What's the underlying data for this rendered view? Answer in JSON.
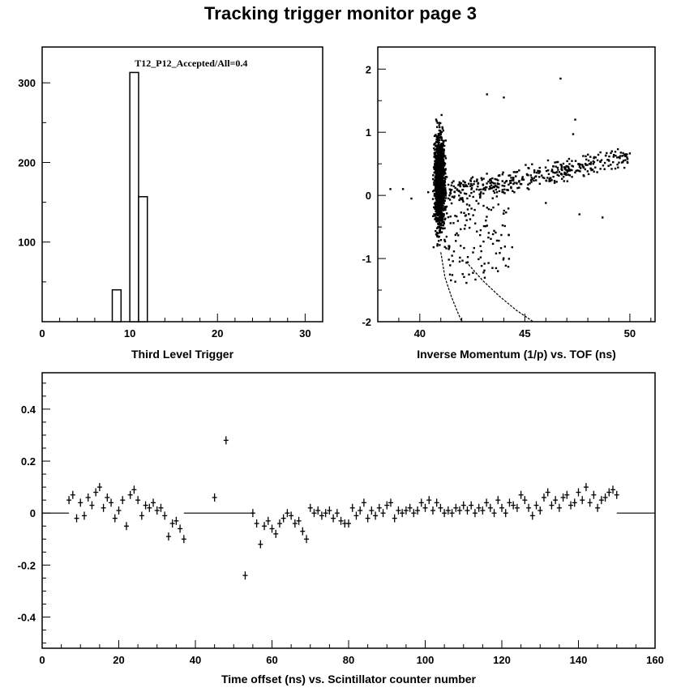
{
  "page": {
    "title": "Tracking trigger monitor page 3"
  },
  "chart_data": [
    {
      "id": "hist",
      "type": "bar",
      "title": "",
      "stat_label": "T12_P12_Accepted/All=0.4",
      "xlabel": "Third Level Trigger",
      "ylabel": "",
      "xlim": [
        0,
        32
      ],
      "ylim": [
        0,
        345
      ],
      "xticks": [
        0,
        10,
        20,
        30
      ],
      "yticks": [
        100,
        200,
        300
      ],
      "bin_width": 1,
      "bins": [
        {
          "x": 8,
          "value": 40
        },
        {
          "x": 9,
          "value": 0
        },
        {
          "x": 10,
          "value": 313
        },
        {
          "x": 11,
          "value": 157
        }
      ]
    },
    {
      "id": "scatter",
      "type": "scatter",
      "title": "",
      "xlabel": "Inverse Momentum (1/p) vs. TOF (ns)",
      "ylabel": "",
      "xlim": [
        38,
        51.2
      ],
      "ylim": [
        -2,
        2.35
      ],
      "xticks": [
        40,
        45,
        50
      ],
      "yticks": [
        -2,
        -1,
        0,
        1,
        2
      ],
      "dense_core": {
        "x": [
          40.6,
          41.3
        ],
        "y": [
          -1.2,
          1.7
        ]
      },
      "band": {
        "x": [
          41.3,
          50
        ],
        "y": [
          0.05,
          0.75
        ]
      },
      "curves": [
        {
          "name": "",
          "x": [
            41.0,
            41.2,
            41.5,
            41.8,
            42.0
          ],
          "y": [
            -0.9,
            -1.3,
            -1.6,
            -1.85,
            -2.0
          ]
        },
        {
          "name": "",
          "x": [
            42.2,
            43.0,
            43.8,
            44.6,
            45.4
          ],
          "y": [
            -1.05,
            -1.35,
            -1.6,
            -1.82,
            -2.0
          ]
        }
      ],
      "extra_points": [
        {
          "x": 38.6,
          "y": 0.1
        },
        {
          "x": 39.2,
          "y": 0.1
        },
        {
          "x": 39.6,
          "y": -0.05
        },
        {
          "x": 40.4,
          "y": 0.05
        },
        {
          "x": 43.2,
          "y": 1.6
        },
        {
          "x": 44.0,
          "y": 1.55
        },
        {
          "x": 46.7,
          "y": 1.85
        },
        {
          "x": 47.4,
          "y": 1.2
        },
        {
          "x": 47.3,
          "y": 0.97
        },
        {
          "x": 47.9,
          "y": 0.62
        },
        {
          "x": 48.6,
          "y": 0.42
        },
        {
          "x": 49.4,
          "y": 0.6
        },
        {
          "x": 48.7,
          "y": -0.35
        },
        {
          "x": 47.6,
          "y": -0.3
        },
        {
          "x": 46.0,
          "y": -0.12
        },
        {
          "x": 44.5,
          "y": 0.05
        }
      ]
    },
    {
      "id": "timing",
      "type": "scatter",
      "title": "",
      "xlabel": "Time offset (ns) vs. Scintillator counter number",
      "ylabel": "",
      "xlim": [
        0,
        160
      ],
      "ylim": [
        -0.52,
        0.54
      ],
      "xticks": [
        0,
        20,
        40,
        60,
        80,
        100,
        120,
        140,
        160
      ],
      "yticks": [
        -0.4,
        -0.2,
        0,
        0.2,
        0.4
      ],
      "error_bars": true,
      "zero_segments": [
        [
          0,
          7
        ],
        [
          37,
          55
        ],
        [
          150,
          160
        ]
      ],
      "x": [
        7,
        8,
        9,
        10,
        11,
        12,
        13,
        14,
        15,
        16,
        17,
        18,
        19,
        20,
        21,
        22,
        23,
        24,
        25,
        26,
        27,
        28,
        29,
        30,
        31,
        32,
        33,
        34,
        35,
        36,
        37,
        45,
        48,
        53,
        55,
        56,
        57,
        58,
        59,
        60,
        61,
        62,
        63,
        64,
        65,
        66,
        67,
        68,
        69,
        70,
        71,
        72,
        73,
        74,
        75,
        76,
        77,
        78,
        79,
        80,
        81,
        82,
        83,
        84,
        85,
        86,
        87,
        88,
        89,
        90,
        91,
        92,
        93,
        94,
        95,
        96,
        97,
        98,
        99,
        100,
        101,
        102,
        103,
        104,
        105,
        106,
        107,
        108,
        109,
        110,
        111,
        112,
        113,
        114,
        115,
        116,
        117,
        118,
        119,
        120,
        121,
        122,
        123,
        124,
        125,
        126,
        127,
        128,
        129,
        130,
        131,
        132,
        133,
        134,
        135,
        136,
        137,
        138,
        139,
        140,
        141,
        142,
        143,
        144,
        145,
        146,
        147,
        148,
        149,
        150
      ],
      "y": [
        0.05,
        0.07,
        -0.02,
        0.04,
        -0.01,
        0.06,
        0.03,
        0.08,
        0.1,
        0.02,
        0.06,
        0.04,
        -0.02,
        0.01,
        0.05,
        -0.05,
        0.07,
        0.09,
        0.05,
        -0.01,
        0.03,
        0.02,
        0.04,
        0.01,
        0.02,
        -0.01,
        -0.09,
        -0.04,
        -0.03,
        -0.06,
        -0.1,
        0.06,
        0.28,
        -0.24,
        0.0,
        -0.04,
        -0.12,
        -0.05,
        -0.03,
        -0.06,
        -0.08,
        -0.04,
        -0.02,
        0.0,
        -0.01,
        -0.04,
        -0.03,
        -0.07,
        -0.1,
        0.02,
        0.0,
        0.01,
        -0.01,
        0.0,
        0.01,
        -0.02,
        0.0,
        -0.03,
        -0.04,
        -0.04,
        0.02,
        -0.01,
        0.01,
        0.04,
        -0.02,
        0.01,
        -0.01,
        0.02,
        0.0,
        0.03,
        0.04,
        -0.02,
        0.01,
        0.0,
        0.01,
        0.02,
        0.0,
        0.01,
        0.04,
        0.02,
        0.05,
        0.01,
        0.04,
        0.02,
        0.0,
        0.01,
        0.0,
        0.02,
        0.01,
        0.03,
        0.01,
        0.03,
        0.0,
        0.02,
        0.01,
        0.04,
        0.02,
        0.0,
        0.05,
        0.02,
        0.0,
        0.04,
        0.03,
        0.02,
        0.07,
        0.05,
        0.02,
        -0.01,
        0.03,
        0.01,
        0.06,
        0.08,
        0.03,
        0.05,
        0.02,
        0.06,
        0.07,
        0.03,
        0.04,
        0.08,
        0.05,
        0.1,
        0.04,
        0.07,
        0.02,
        0.05,
        0.06,
        0.08,
        0.09,
        0.07
      ]
    }
  ]
}
